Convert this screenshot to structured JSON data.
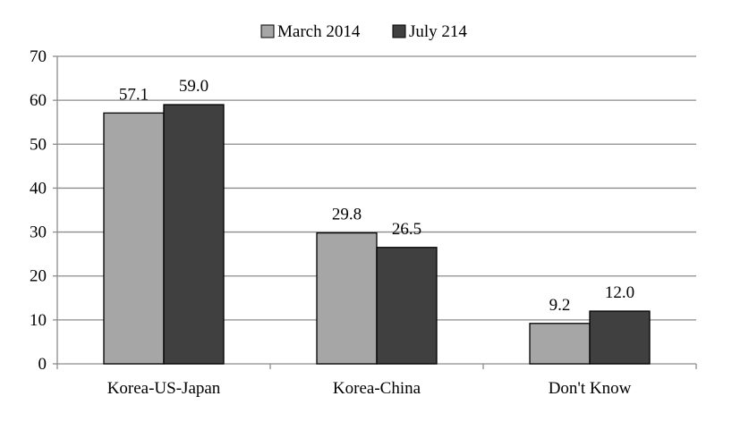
{
  "chart_data": {
    "type": "bar",
    "title": "",
    "xlabel": "",
    "ylabel": "",
    "categories": [
      "Korea-US-Japan",
      "Korea-China",
      "Don't Know"
    ],
    "series": [
      {
        "name": "March 2014",
        "values": [
          57.1,
          29.8,
          9.2
        ],
        "color": "#a6a6a6"
      },
      {
        "name": "July 214",
        "values": [
          59.0,
          26.5,
          12.0
        ],
        "color": "#404040"
      }
    ],
    "value_labels": [
      [
        "57.1",
        "29.8",
        "9.2"
      ],
      [
        "59.0",
        "26.5",
        "12.0"
      ]
    ],
    "ylim": [
      0,
      70
    ],
    "yticks": [
      "0",
      "10",
      "20",
      "30",
      "40",
      "50",
      "60",
      "70"
    ],
    "grid": true,
    "legend_position": "top-center"
  }
}
